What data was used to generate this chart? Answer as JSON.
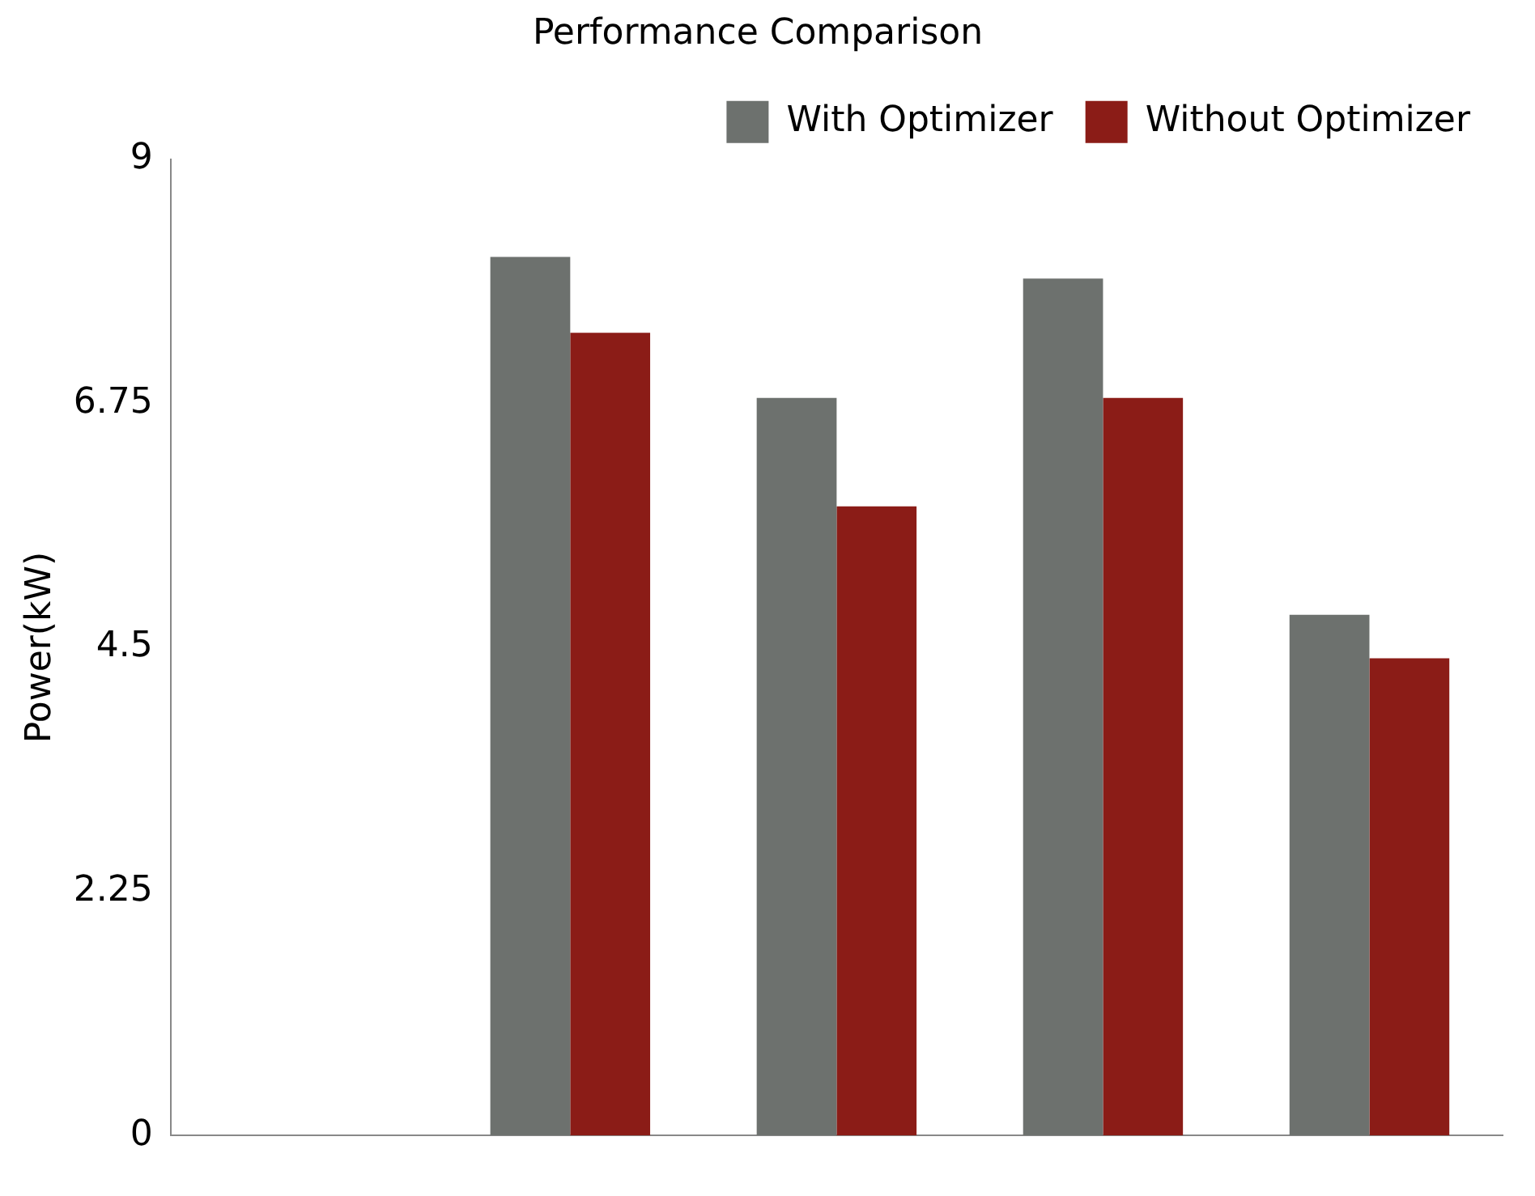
{
  "chart_data": {
    "type": "bar",
    "title": "Performance Comparison",
    "ylabel": "Power(kW)",
    "categories": [
      null,
      null,
      null,
      null,
      null
    ],
    "series": [
      {
        "name": "With Optimizer",
        "color": "#6d716e",
        "values": [
          null,
          8.1,
          6.8,
          7.9,
          4.8
        ]
      },
      {
        "name": "Without Optimizer",
        "color": "#8b1c17",
        "values": [
          null,
          7.4,
          5.8,
          6.8,
          4.4
        ]
      }
    ],
    "ylim": [
      0,
      9
    ],
    "yticks": [
      0,
      2.25,
      4.5,
      6.75,
      9
    ],
    "grid": false,
    "legend": "top right"
  }
}
